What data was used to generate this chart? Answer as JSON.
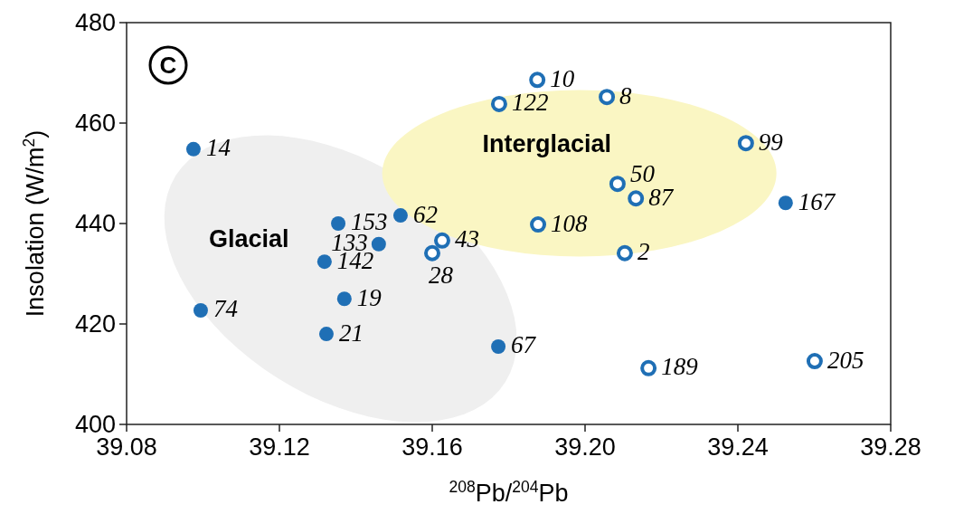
{
  "chart_data": {
    "type": "scatter",
    "title": "C",
    "xlabel": "$^{208}$Pb/$^{204}$Pb",
    "ylabel": "Insolation (W/m$^{2}$)",
    "xlim": [
      39.08,
      39.28
    ],
    "xticks": [
      39.08,
      39.12,
      39.16,
      {
        "value": 39.2,
        "label": "39.20"
      },
      39.24,
      {
        "value": 39.28,
        "label": "39.28"
      }
    ],
    "ylim": [
      400,
      480
    ],
    "yticks": [
      400,
      420,
      440,
      460,
      480
    ],
    "grid": false,
    "marker": "circle",
    "series": [
      {
        "color": "#1f6fb5",
        "x": [
          39.0975,
          39.0994,
          39.1354,
          39.1517,
          39.146,
          39.1318,
          39.137,
          39.1323,
          39.1773,
          39.2525
        ],
        "values": [
          454.8,
          422.7,
          440.0,
          441.6,
          435.9,
          432.4,
          425.0,
          418.0,
          415.5,
          444.1
        ]
      },
      {
        "color": "#1f6fb5",
        "x": [
          39.1875,
          39.1775,
          39.2057,
          39.2421,
          39.2085,
          39.2133,
          39.1877,
          39.2104,
          39.1626,
          39.16,
          39.2166,
          39.2601
        ],
        "values": [
          468.6,
          463.8,
          465.2,
          456.0,
          447.9,
          445.0,
          439.8,
          434.1,
          436.6,
          434.1,
          411.2,
          412.6
        ]
      }
    ],
    "annotations": [
      "Glacial",
      "Interglacial",
      {
        "text": "14",
        "x": 39.0975,
        "y": 454.8
      },
      {
        "text": "74",
        "x": 39.0994,
        "y": 422.7
      },
      {
        "text": "153",
        "x": 39.1354,
        "y": 440.0
      },
      {
        "text": "62",
        "x": 39.1517,
        "y": 441.6
      },
      {
        "text": "133",
        "x": 39.146,
        "y": 435.9
      },
      {
        "text": "142",
        "x": 39.1318,
        "y": 432.4
      },
      {
        "text": "19",
        "x": 39.137,
        "y": 425.0
      },
      {
        "text": "21",
        "x": 39.1323,
        "y": 418.0
      },
      {
        "text": "67",
        "x": 39.1773,
        "y": 415.5
      },
      {
        "text": "167",
        "x": 39.2525,
        "y": 444.1
      },
      {
        "text": "10",
        "x": 39.1875,
        "y": 468.6
      },
      {
        "text": "122",
        "x": 39.1775,
        "y": 463.8
      },
      {
        "text": "8",
        "x": 39.2057,
        "y": 465.2
      },
      {
        "text": "99",
        "x": 39.2421,
        "y": 456.0
      },
      {
        "text": "50",
        "x": 39.2085,
        "y": 447.9
      },
      {
        "text": "87",
        "x": 39.2133,
        "y": 445.0
      },
      {
        "text": "108",
        "x": 39.1877,
        "y": 439.8
      },
      {
        "text": "2",
        "x": 39.2104,
        "y": 434.1
      },
      {
        "text": "43",
        "x": 39.1626,
        "y": 436.6
      },
      {
        "text": "28",
        "x": 39.16,
        "y": 434.1
      },
      {
        "text": "189",
        "x": 39.2166,
        "y": 411.2
      },
      {
        "text": "205",
        "x": 39.2601,
        "y": 412.6
      }
    ]
  }
}
